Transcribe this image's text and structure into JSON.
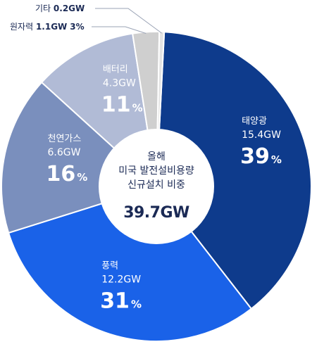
{
  "chart_data": {
    "type": "pie",
    "style": "donut",
    "unit": "GW",
    "center": {
      "label_lines": [
        "올해",
        "미국 발전설비용량",
        "신규설치 비중"
      ],
      "total": "39.7GW"
    },
    "segments": [
      {
        "name": "태양광",
        "value": 15.4,
        "value_label": "15.4GW",
        "percent": 39,
        "percent_label": "39",
        "color": "#0e3b8c",
        "text_color": "#ffffff"
      },
      {
        "name": "풍력",
        "value": 12.2,
        "value_label": "12.2GW",
        "percent": 31,
        "percent_label": "31",
        "color": "#1a62e8",
        "text_color": "#ffffff"
      },
      {
        "name": "천연가스",
        "value": 6.6,
        "value_label": "6.6GW",
        "percent": 16,
        "percent_label": "16",
        "color": "#7a8fbd",
        "text_color": "#ffffff"
      },
      {
        "name": "배터리",
        "value": 4.3,
        "value_label": "4.3GW",
        "percent": 11,
        "percent_label": "11",
        "color": "#b1bbd6",
        "text_color": "#ffffff"
      },
      {
        "name": "원자력",
        "value": 1.1,
        "value_label": "1.1GW",
        "percent": 3,
        "percent_label": "3%",
        "color": "#cfcfcf",
        "callout": true
      },
      {
        "name": "기타",
        "value": 0.2,
        "value_label": "0.2GW",
        "percent": null,
        "percent_label": "",
        "color": "#e3e3e3",
        "callout": true
      }
    ],
    "percent_sign": "%"
  }
}
